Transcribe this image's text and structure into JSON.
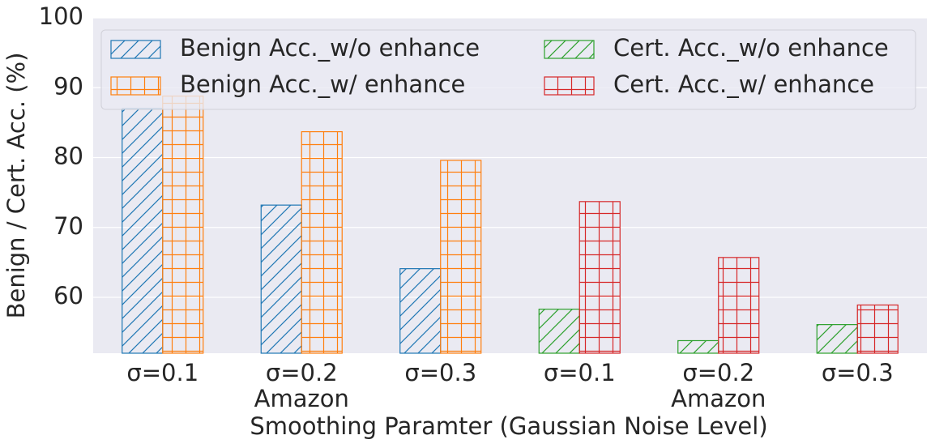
{
  "chart_data": {
    "type": "bar",
    "categories": [
      "σ=0.1",
      "σ=0.2",
      "σ=0.3",
      "σ=0.1",
      "σ=0.2",
      "σ=0.3"
    ],
    "group_labels": [
      "Amazon",
      "Amazon"
    ],
    "series": [
      {
        "name": "Benign Acc._w/o enhance",
        "color": "#1f77b4",
        "hatch": "/",
        "values": [
          87,
          73.2,
          64.1,
          null,
          null,
          null
        ]
      },
      {
        "name": "Benign Acc._w/ enhance",
        "color": "#ff7f0e",
        "hatch": "+",
        "values": [
          88.8,
          83.7,
          79.6,
          null,
          null,
          null
        ]
      },
      {
        "name": "Cert. Acc._w/o enhance",
        "color": "#2ca02c",
        "hatch": "/",
        "values": [
          null,
          null,
          null,
          58.3,
          53.8,
          56.1
        ]
      },
      {
        "name": "Cert. Acc._w/ enhance",
        "color": "#d62728",
        "hatch": "+",
        "values": [
          null,
          null,
          null,
          73.7,
          65.7,
          58.9
        ]
      }
    ],
    "xlabel": "Smoothing Paramter (Gaussian Noise Level)",
    "ylabel": "Benign / Cert. Acc. (%)",
    "ylim": [
      52,
      100
    ],
    "yticks": [
      60,
      70,
      80,
      90,
      100
    ],
    "grid": true,
    "legend": "upper"
  }
}
